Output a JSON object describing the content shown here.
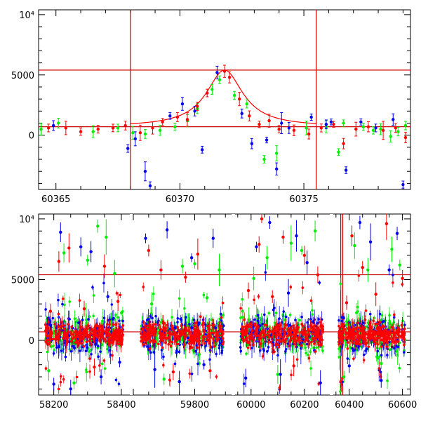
{
  "chart_data": [
    {
      "type": "scatter",
      "title": "",
      "xlabel": "",
      "ylabel": "",
      "xlim": [
        60364.3,
        60379.3
      ],
      "ylim": [
        -4500,
        10400
      ],
      "x_ticks": [
        60365,
        60370,
        60375
      ],
      "x_tick_labels": [
        "60365",
        "60370",
        "60375"
      ],
      "y_ticks": [
        0,
        5000,
        10000
      ],
      "y_tick_labels": [
        "0",
        "5000",
        "10⁴"
      ],
      "grid": false,
      "legend": "none",
      "colors": {
        "red": "#ff0000",
        "green": "#00ee00",
        "blue": "#0000ee",
        "lines": "#cc0000"
      },
      "reference_lines": {
        "x": [
          60368.0,
          60375.5
        ],
        "y": [
          5400,
          700
        ]
      },
      "model_curve": {
        "baseline": 700,
        "peak": 5400,
        "t0": 60371.8,
        "width": 0.9
      },
      "series": [
        {
          "color": "green",
          "points": [
            [
              60364.4,
              500
            ],
            [
              60365.1,
              1000
            ],
            [
              60366.5,
              300
            ],
            [
              60367.5,
              600
            ],
            [
              60368.1,
              200
            ],
            [
              60368.6,
              100
            ],
            [
              60369.2,
              400
            ],
            [
              60369.8,
              700
            ],
            [
              60370.3,
              1200
            ],
            [
              60370.7,
              2200
            ],
            [
              60371.3,
              3800
            ],
            [
              60371.6,
              4600
            ],
            [
              60372.2,
              3300
            ],
            [
              60372.7,
              2600
            ],
            [
              60373.4,
              -2000
            ],
            [
              60373.9,
              -1500
            ],
            [
              60375.1,
              600
            ],
            [
              60375.9,
              700
            ],
            [
              60376.4,
              -1400
            ],
            [
              60376.6,
              1000
            ],
            [
              60377.4,
              700
            ],
            [
              60377.8,
              400
            ],
            [
              60378.1,
              500
            ],
            [
              60378.5,
              -100
            ],
            [
              60378.8,
              300
            ],
            [
              60379.1,
              800
            ]
          ]
        },
        {
          "color": "blue",
          "points": [
            [
              60364.9,
              800
            ],
            [
              60367.9,
              -1100
            ],
            [
              60368.2,
              -300
            ],
            [
              60368.6,
              -3000
            ],
            [
              60368.8,
              -4200
            ],
            [
              60369.6,
              1600
            ],
            [
              60370.1,
              2600
            ],
            [
              60370.6,
              2000
            ],
            [
              60370.9,
              -1200
            ],
            [
              60371.5,
              5200
            ],
            [
              60372.5,
              1800
            ],
            [
              60372.9,
              -700
            ],
            [
              60373.5,
              -400
            ],
            [
              60373.9,
              -2800
            ],
            [
              60374.1,
              1000
            ],
            [
              60374.4,
              600
            ],
            [
              60375.3,
              1500
            ],
            [
              60375.9,
              900
            ],
            [
              60376.1,
              1100
            ],
            [
              60376.7,
              -2900
            ],
            [
              60377.3,
              1100
            ],
            [
              60377.9,
              600
            ],
            [
              60378.6,
              1300
            ],
            [
              60379.0,
              -4100
            ]
          ]
        },
        {
          "color": "red",
          "points": [
            [
              60364.7,
              600
            ],
            [
              60365.4,
              600
            ],
            [
              60366.0,
              300
            ],
            [
              60366.7,
              500
            ],
            [
              60367.3,
              600
            ],
            [
              60367.8,
              800
            ],
            [
              60368.4,
              200
            ],
            [
              60368.9,
              600
            ],
            [
              60369.3,
              1100
            ],
            [
              60369.9,
              1500
            ],
            [
              60370.3,
              1300
            ],
            [
              60370.7,
              2400
            ],
            [
              60371.1,
              3500
            ],
            [
              60371.8,
              5300
            ],
            [
              60372.0,
              4800
            ],
            [
              60372.4,
              3000
            ],
            [
              60372.8,
              1600
            ],
            [
              60373.2,
              900
            ],
            [
              60373.6,
              1200
            ],
            [
              60374.0,
              500
            ],
            [
              60374.6,
              400
            ],
            [
              60375.2,
              100
            ],
            [
              60375.7,
              600
            ],
            [
              60376.2,
              900
            ],
            [
              60376.6,
              -700
            ],
            [
              60377.1,
              500
            ],
            [
              60377.6,
              700
            ],
            [
              60378.2,
              400
            ],
            [
              60378.7,
              600
            ],
            [
              60379.1,
              -200
            ]
          ]
        }
      ]
    },
    {
      "type": "scatter",
      "title": "",
      "xlabel": "",
      "ylabel": "",
      "x_segments": [
        {
          "xlim": [
            58155,
            58425
          ],
          "x_ticks": [
            58200,
            58400
          ],
          "x_tick_labels": [
            "58200",
            "58400"
          ]
        },
        {
          "xlim": [
            59600,
            59920
          ],
          "x_ticks": [
            59800
          ],
          "x_tick_labels": [
            "59800"
          ]
        },
        {
          "xlim": [
            59940,
            60295
          ],
          "x_ticks": [
            60000,
            60200
          ],
          "x_tick_labels": [
            "60000",
            "60200"
          ]
        },
        {
          "xlim": [
            60340,
            60630
          ],
          "x_ticks": [
            60400,
            60600
          ],
          "x_tick_labels": [
            "60400",
            "60600"
          ]
        }
      ],
      "ylim": [
        -4500,
        10400
      ],
      "y_ticks": [
        0,
        5000,
        10000
      ],
      "y_tick_labels": [
        "0",
        "5000",
        "10⁴"
      ],
      "grid": false,
      "legend": "none",
      "colors": {
        "red": "#ff0000",
        "green": "#00ee00",
        "blue": "#0000ee",
        "lines": "#cc0000"
      },
      "reference_lines": {
        "x": [
          60368.0,
          60375.5
        ],
        "y": [
          5400,
          700
        ]
      },
      "data_ranges": [
        [
          58175,
          58405
        ],
        [
          59625,
          59895
        ],
        [
          59960,
          60270
        ],
        [
          60360,
          60610
        ]
      ],
      "series": [
        {
          "color": "green",
          "points": [
            [
              58185,
              -2500
            ],
            [
              58230,
              7200
            ],
            [
              58260,
              -3500
            ],
            [
              58300,
              6600
            ],
            [
              58330,
              9400
            ],
            [
              58355,
              8500
            ],
            [
              58380,
              5500
            ],
            [
              59660,
              3000
            ],
            [
              59700,
              -3200
            ],
            [
              59760,
              6100
            ],
            [
              59800,
              6300
            ],
            [
              59840,
              3500
            ],
            [
              59880,
              5800
            ],
            [
              60010,
              5100
            ],
            [
              60060,
              6800
            ],
            [
              60100,
              -2800
            ],
            [
              60150,
              8000
            ],
            [
              60190,
              7400
            ],
            [
              60240,
              9000
            ],
            [
              60380,
              -3000
            ],
            [
              60420,
              7800
            ],
            [
              60470,
              5800
            ],
            [
              60520,
              -1900
            ],
            [
              60560,
              7500
            ],
            [
              60590,
              6200
            ]
          ]
        },
        {
          "color": "blue",
          "points": [
            [
              58200,
              -3600
            ],
            [
              58220,
              8900
            ],
            [
              58250,
              -4000
            ],
            [
              58280,
              7700
            ],
            [
              58310,
              7300
            ],
            [
              58340,
              -3000
            ],
            [
              58360,
              3600
            ],
            [
              58395,
              -1800
            ],
            [
              59640,
              8400
            ],
            [
              59670,
              -2400
            ],
            [
              59710,
              9100
            ],
            [
              59750,
              -3400
            ],
            [
              59790,
              6800
            ],
            [
              59830,
              -2000
            ],
            [
              59860,
              8400
            ],
            [
              59980,
              -3100
            ],
            [
              60020,
              7700
            ],
            [
              60070,
              9700
            ],
            [
              60110,
              -2800
            ],
            [
              60140,
              3900
            ],
            [
              60170,
              8600
            ],
            [
              60210,
              6400
            ],
            [
              60260,
              -3500
            ],
            [
              60400,
              -2100
            ],
            [
              60440,
              9700
            ],
            [
              60480,
              8100
            ],
            [
              60520,
              -3300
            ],
            [
              60550,
              5800
            ],
            [
              60580,
              8800
            ]
          ]
        },
        {
          "color": "red",
          "points": [
            [
              58190,
              2400
            ],
            [
              58215,
              6500
            ],
            [
              58245,
              7600
            ],
            [
              58290,
              2600
            ],
            [
              58320,
              -2200
            ],
            [
              58350,
              6100
            ],
            [
              58390,
              3200
            ],
            [
              59650,
              7400
            ],
            [
              59690,
              5800
            ],
            [
              59730,
              -2600
            ],
            [
              59770,
              5200
            ],
            [
              59810,
              7100
            ],
            [
              59850,
              -2500
            ],
            [
              59990,
              4100
            ],
            [
              60030,
              7900
            ],
            [
              60040,
              10000
            ],
            [
              60080,
              3600
            ],
            [
              60120,
              8500
            ],
            [
              60160,
              -2100
            ],
            [
              60200,
              7000
            ],
            [
              60250,
              5400
            ],
            [
              60390,
              3100
            ],
            [
              60410,
              8600
            ],
            [
              60450,
              6000
            ],
            [
              60500,
              3800
            ],
            [
              60540,
              9600
            ],
            [
              60600,
              5100
            ]
          ]
        }
      ]
    }
  ]
}
